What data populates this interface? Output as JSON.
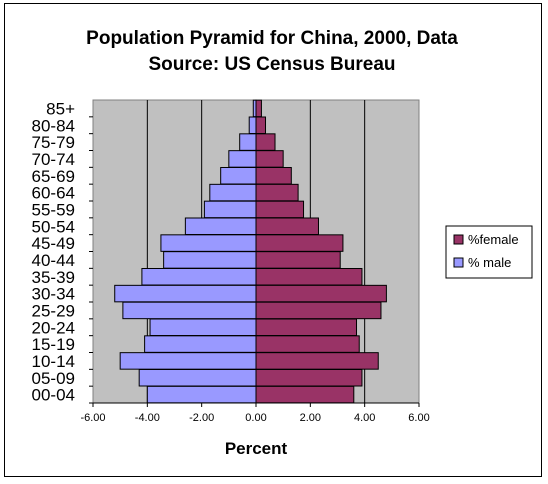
{
  "chart_data": {
    "type": "bar",
    "orientation": "horizontal",
    "stacking": "population-pyramid",
    "title_line1": "Population Pyramid for China, 2000, Data",
    "title_line2": "Source: US Census Bureau",
    "xlabel": "Percent",
    "ylabel": "",
    "xlim": [
      -6,
      6
    ],
    "xticks": [
      -6,
      -4,
      -2,
      0,
      2,
      4,
      6
    ],
    "xtick_labels": [
      "-6.00",
      "-4.00",
      "-2.00",
      "0.00",
      "2.00",
      "4.00",
      "6.00"
    ],
    "grid": true,
    "gridlines_x": [
      -6,
      -4,
      -2,
      0,
      2,
      4,
      6
    ],
    "legend_position": "right",
    "plot_background": "#c0c0c0",
    "categories": [
      "00-04",
      "05-09",
      "10-14",
      "15-19",
      "20-24",
      "25-29",
      "30-34",
      "35-39",
      "40-44",
      "45-49",
      "50-54",
      "55-59",
      "60-64",
      "65-69",
      "70-74",
      "75-79",
      "80-84",
      "85+"
    ],
    "series": [
      {
        "name": "% male",
        "color": "#9999ff",
        "values": [
          -4.0,
          -4.3,
          -5.0,
          -4.1,
          -3.9,
          -4.9,
          -5.2,
          -4.2,
          -3.4,
          -3.5,
          -2.6,
          -1.9,
          -1.7,
          -1.3,
          -1.0,
          -0.6,
          -0.25,
          -0.1
        ]
      },
      {
        "name": "%female",
        "color": "#993366",
        "values": [
          3.6,
          3.9,
          4.5,
          3.8,
          3.7,
          4.6,
          4.8,
          3.9,
          3.1,
          3.2,
          2.3,
          1.75,
          1.55,
          1.3,
          1.0,
          0.7,
          0.35,
          0.2
        ]
      }
    ],
    "legend": [
      {
        "label": "%female",
        "color": "#993366"
      },
      {
        "label": "% male",
        "color": "#9999ff"
      }
    ]
  }
}
